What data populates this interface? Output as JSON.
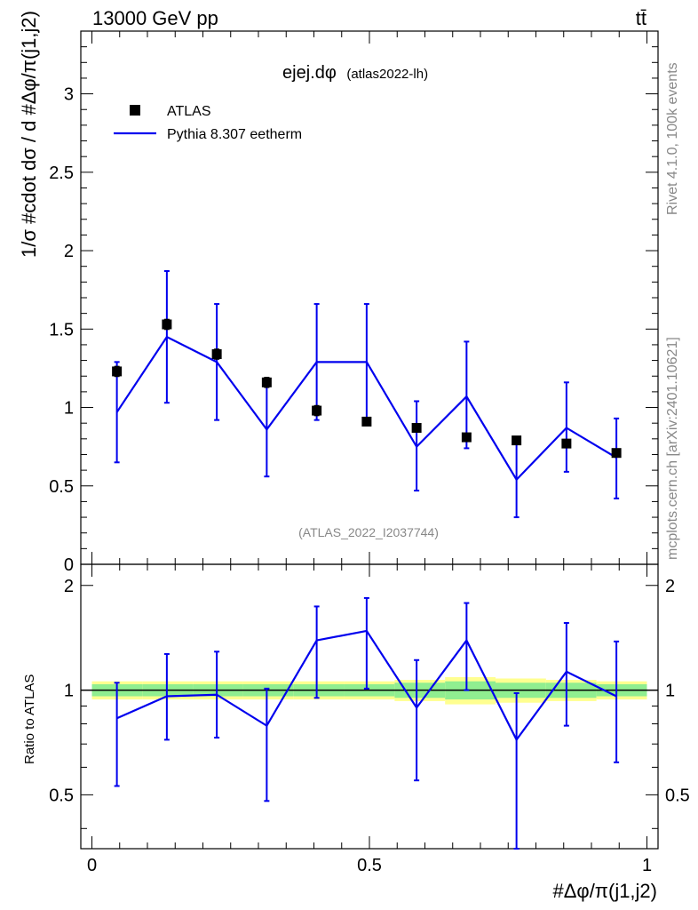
{
  "header": {
    "left_title": "13000 GeV pp",
    "right_title": "tt̄"
  },
  "chart_title": {
    "main": "ejej.dφ",
    "sub": "(atlas2022-lh)"
  },
  "analysis_id": "(ATLAS_2022_I2037744)",
  "side_labels": {
    "rivet": "Rivet 4.1.0,  100k events",
    "mcplots": "mcplots.cern.ch [arXiv:2401.10621]"
  },
  "legend": {
    "data_label": "ATLAS",
    "mc_label": "Pythia 8.307 eetherm"
  },
  "axis_labels": {
    "ylabel_main": "1/σ #cdot dσ / d #Δφ/π(j1,j2)",
    "ylabel_ratio": "Ratio to ATLAS",
    "xlabel": "#Δφ/π(j1,j2)"
  },
  "ticks": {
    "main_y": [
      "0",
      "0.5",
      "1",
      "1.5",
      "2",
      "2.5",
      "3"
    ],
    "ratio_y": [
      "0.5",
      "1",
      "2"
    ],
    "x": [
      "0",
      "0.5",
      "1"
    ]
  },
  "colors": {
    "data": "#000000",
    "mc": "#0000ee",
    "band_inner": "#90ee90",
    "band_outer": "#ffff90"
  },
  "chart_data": {
    "type": "line",
    "x_range": [
      -0.02,
      1.02
    ],
    "main_ylim": [
      0,
      3.4
    ],
    "ratio_ylim": [
      0.35,
      2.3
    ],
    "ratio_scale": "log",
    "x_bins": [
      0.0,
      0.0909,
      0.1818,
      0.2727,
      0.3636,
      0.4545,
      0.5454,
      0.6363,
      0.7272,
      0.8181,
      0.909,
      1.0
    ],
    "x": [
      0.045,
      0.135,
      0.225,
      0.315,
      0.405,
      0.495,
      0.585,
      0.675,
      0.765,
      0.855,
      0.945
    ],
    "series": [
      {
        "name": "ATLAS",
        "values": [
          1.23,
          1.53,
          1.34,
          1.16,
          0.98,
          0.91,
          0.87,
          0.81,
          0.79,
          0.77,
          0.71
        ],
        "err": [
          0.03,
          0.03,
          0.03,
          0.03,
          0.03,
          0.02,
          0.02,
          0.02,
          0.02,
          0.02,
          0.02
        ]
      },
      {
        "name": "Pythia 8.307 eetherm",
        "values": [
          0.97,
          1.45,
          1.29,
          0.86,
          1.29,
          1.29,
          0.75,
          1.07,
          0.54,
          0.87,
          0.68
        ],
        "err_up": [
          1.29,
          1.87,
          1.66,
          1.16,
          1.66,
          1.66,
          1.04,
          1.42,
          0.79,
          1.16,
          0.93
        ],
        "err_down": [
          0.65,
          1.03,
          0.92,
          0.56,
          0.92,
          0.92,
          0.47,
          0.74,
          0.3,
          0.59,
          0.42
        ]
      }
    ],
    "ratio": {
      "values": [
        0.83,
        0.96,
        0.97,
        0.79,
        1.39,
        1.48,
        0.89,
        1.39,
        0.72,
        1.13,
        0.96
      ],
      "err_up": [
        1.05,
        1.27,
        1.29,
        1.01,
        1.74,
        1.84,
        1.22,
        1.78,
        0.98,
        1.56,
        1.38
      ],
      "err_down": [
        0.53,
        0.72,
        0.73,
        0.48,
        0.95,
        1.01,
        0.55,
        1.0,
        0.34,
        0.79,
        0.62
      ],
      "band_inner": [
        0.04,
        0.04,
        0.04,
        0.04,
        0.04,
        0.04,
        0.05,
        0.06,
        0.05,
        0.05,
        0.04
      ],
      "band_outer": [
        0.06,
        0.06,
        0.06,
        0.06,
        0.06,
        0.06,
        0.07,
        0.09,
        0.08,
        0.07,
        0.06
      ]
    }
  }
}
